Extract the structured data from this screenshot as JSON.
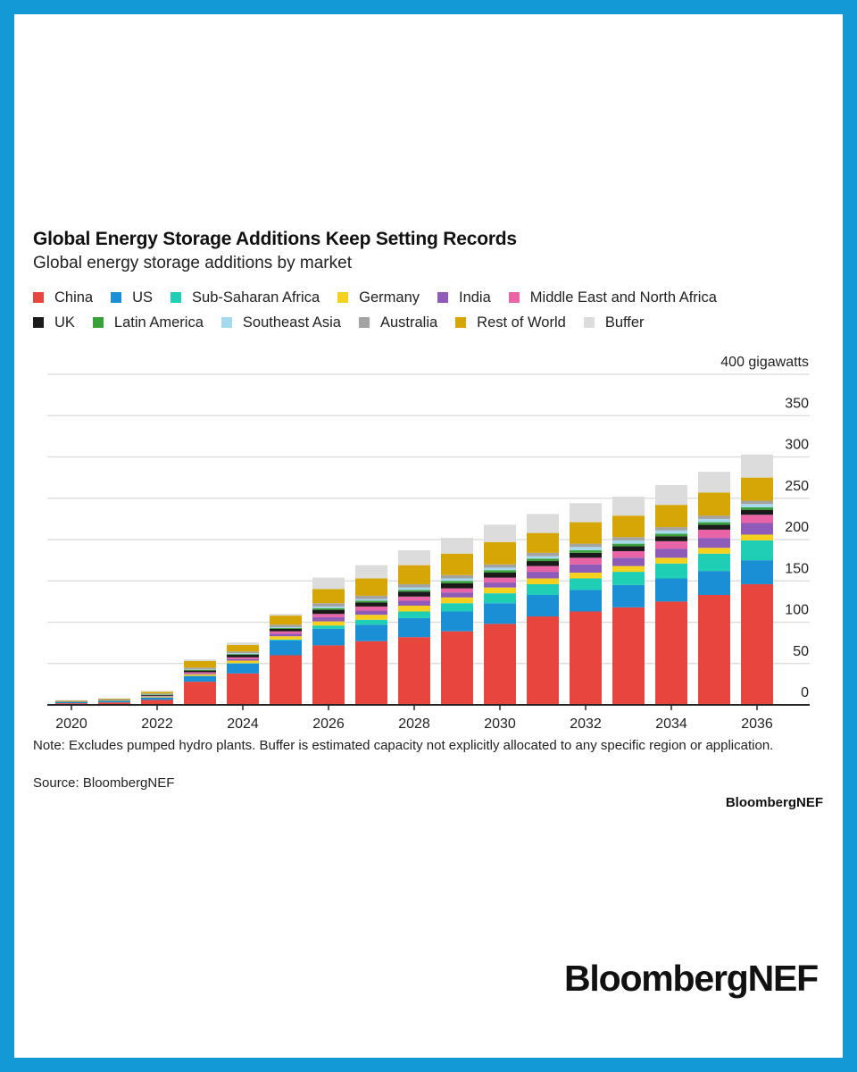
{
  "chart_data": {
    "type": "bar",
    "stacked": true,
    "title": "Global Energy Storage Additions Keep Setting Records",
    "subtitle": "Global energy storage additions by market",
    "ylabel": "gigawatts",
    "ylim": [
      0,
      400
    ],
    "yticks": [
      0,
      50,
      100,
      150,
      200,
      250,
      300,
      350,
      400
    ],
    "ytick_labels": [
      "0",
      "50",
      "100",
      "150",
      "200",
      "250",
      "300",
      "350",
      "400 gigawatts"
    ],
    "xtick_labels": [
      "2020",
      "2022",
      "2024",
      "2026",
      "2028",
      "2030",
      "2032",
      "2034",
      "2036"
    ],
    "grid": true,
    "legend_position": "top",
    "categories": [
      "2020",
      "2021",
      "2022",
      "2023",
      "2024",
      "2025",
      "2026",
      "2027",
      "2028",
      "2029",
      "2030",
      "2031",
      "2032",
      "2033",
      "2034",
      "2035",
      "2036"
    ],
    "series": [
      {
        "name": "China",
        "color": "#e8453c",
        "values": [
          2,
          3,
          6,
          28,
          38,
          60,
          72,
          77,
          82,
          89,
          98,
          107,
          113,
          118,
          125,
          133,
          146
        ]
      },
      {
        "name": "US",
        "color": "#1a8fd6",
        "values": [
          1.5,
          2,
          3,
          7,
          12,
          18,
          20,
          20,
          23,
          24,
          25,
          26,
          26,
          27,
          28,
          29,
          29
        ]
      },
      {
        "name": "Sub-Saharan Africa",
        "color": "#1fcfb5",
        "values": [
          0,
          0,
          0,
          0,
          0.5,
          1,
          4,
          6,
          8,
          10,
          12,
          13,
          14,
          16,
          18,
          21,
          24
        ]
      },
      {
        "name": "Germany",
        "color": "#f5d01e",
        "values": [
          0.5,
          0.7,
          1,
          2,
          3,
          4,
          5,
          6,
          7,
          7,
          7,
          7,
          7,
          7,
          7,
          7,
          7
        ]
      },
      {
        "name": "India",
        "color": "#8e5bb8",
        "values": [
          0,
          0,
          0.5,
          1,
          2,
          3,
          5,
          5,
          6,
          6,
          6,
          8,
          10,
          10,
          11,
          12,
          14
        ]
      },
      {
        "name": "Middle East and North Africa",
        "color": "#e864a6",
        "values": [
          0,
          0,
          0.5,
          1.5,
          2,
          3,
          4,
          5,
          5,
          5,
          6,
          7,
          8,
          8,
          9,
          10,
          10
        ]
      },
      {
        "name": "UK",
        "color": "#1a1a1a",
        "values": [
          0.5,
          0.5,
          1,
          2,
          3,
          3,
          5,
          5,
          6,
          6,
          6,
          6,
          6,
          6,
          6,
          6,
          6
        ]
      },
      {
        "name": "Latin America",
        "color": "#3aa13a",
        "values": [
          0,
          0,
          0.5,
          1,
          1,
          1,
          2,
          2,
          2,
          3,
          3,
          3,
          3,
          3,
          3,
          3,
          3
        ]
      },
      {
        "name": "Southeast Asia",
        "color": "#a6d8ee",
        "values": [
          0,
          0,
          0.3,
          0.5,
          1,
          1,
          2,
          2,
          3,
          3,
          3,
          3,
          4,
          4,
          4,
          4,
          4
        ]
      },
      {
        "name": "Australia",
        "color": "#a3a3a3",
        "values": [
          0.3,
          0.5,
          1,
          2,
          2,
          3,
          4,
          4,
          4,
          4,
          4,
          4,
          4,
          4,
          4,
          4,
          4
        ]
      },
      {
        "name": "Rest of World",
        "color": "#d6a607",
        "values": [
          0.5,
          0.8,
          2,
          8,
          8,
          11,
          17,
          21,
          23,
          26,
          27,
          24,
          26,
          26,
          27,
          28,
          28
        ]
      },
      {
        "name": "Buffer",
        "color": "#dcdcdc",
        "values": [
          0.5,
          0.5,
          1,
          2,
          3,
          2,
          14,
          16,
          18,
          19,
          21,
          23,
          23,
          23,
          24,
          25,
          28
        ]
      }
    ]
  },
  "note": "Note: Excludes pumped hydro plants. Buffer is estimated capacity not explicitly allocated to any specific region or application.",
  "source": "Source: BloombergNEF",
  "brand_small": "BloombergNEF",
  "brand_large": "BloombergNEF",
  "colors": {
    "frame": "#139ad6",
    "grid": "#d9d9d9",
    "axis": "#222222"
  }
}
